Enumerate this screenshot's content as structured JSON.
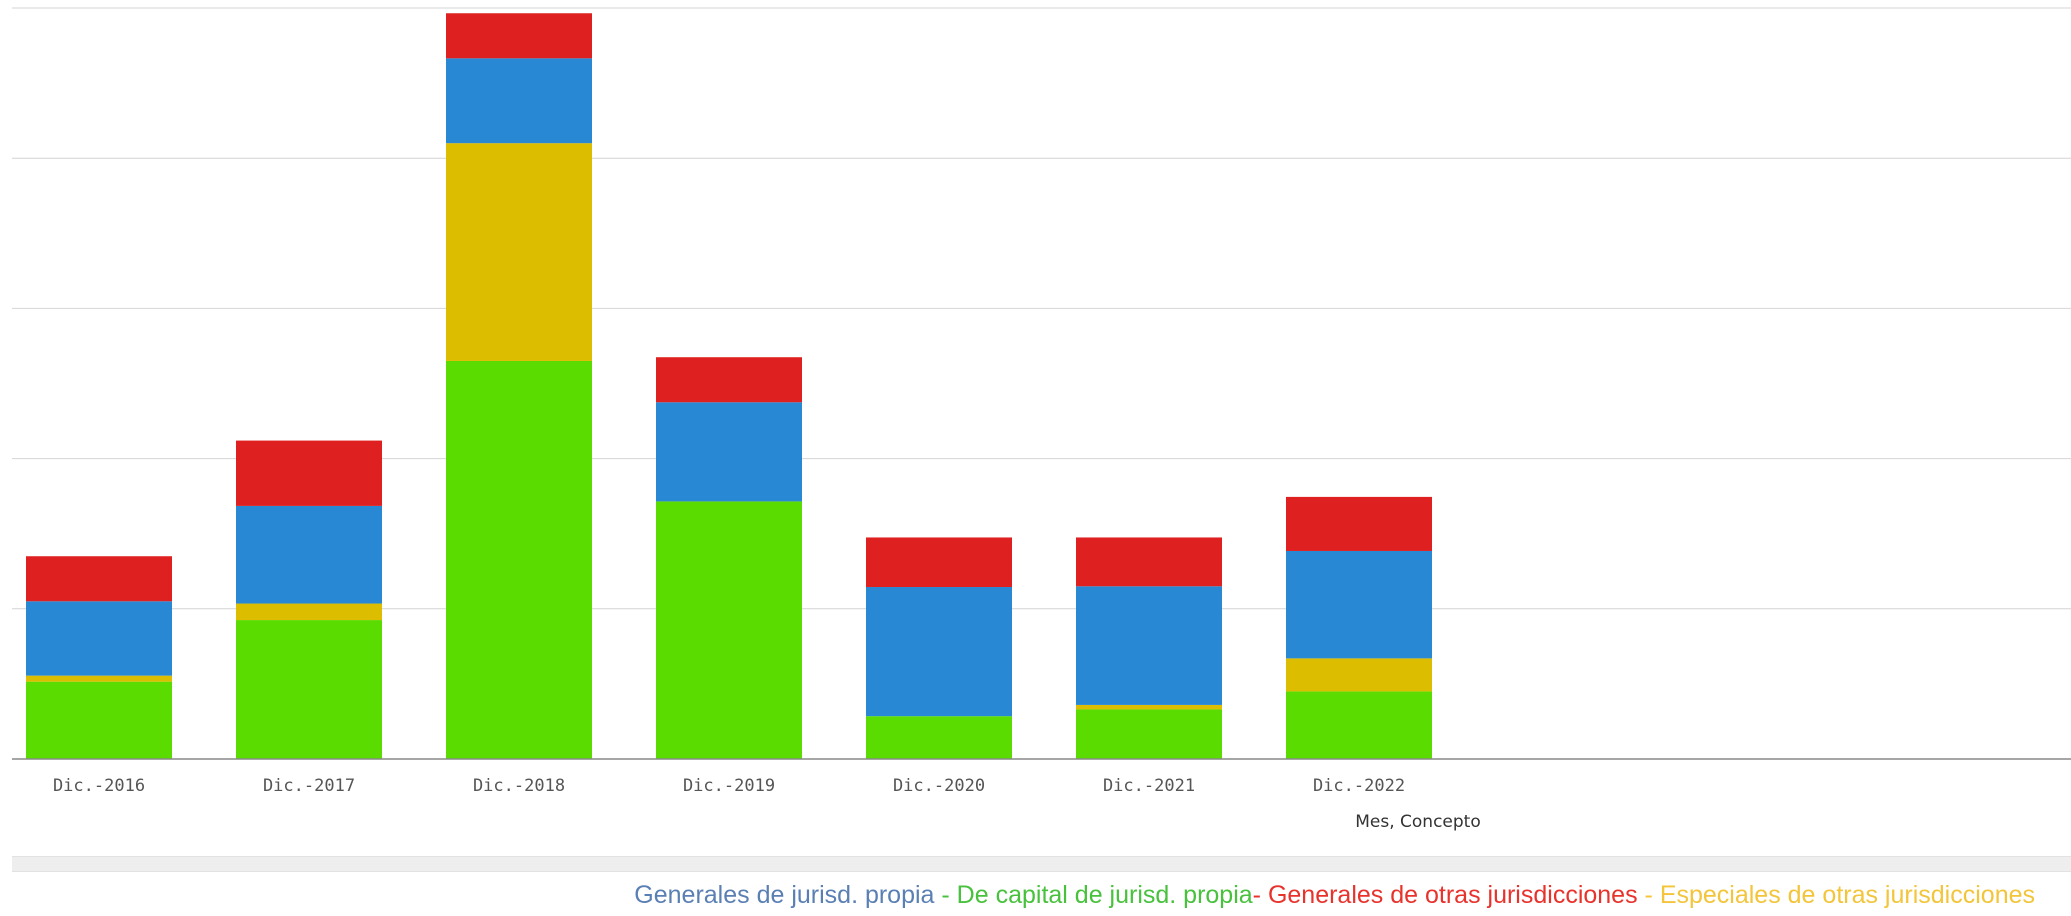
{
  "chart_data": {
    "type": "bar",
    "stacked": true,
    "categories": [
      "Dic.-2016",
      "Dic.-2017",
      "Dic.-2018",
      "Dic.-2019",
      "Dic.-2020",
      "Dic.-2021",
      "Dic.-2022"
    ],
    "xlabel": "Mes, Concepto",
    "ylabel": "",
    "ylim": [
      0,
      100
    ],
    "yticks": [
      0,
      20,
      40,
      60,
      80,
      100
    ],
    "y_tick_labels_visible": false,
    "grid": true,
    "legend_position": "bottom-right",
    "series": [
      {
        "name": "De capital de jurisd. propia",
        "color": "#5bdc00",
        "values": [
          10.3,
          18.5,
          53.0,
          34.3,
          5.7,
          6.6,
          9.0
        ]
      },
      {
        "name": "Especiales de otras jurisdicciones",
        "color": "#ddbd00",
        "values": [
          0.8,
          2.2,
          29.0,
          0.0,
          0.0,
          0.6,
          4.4
        ]
      },
      {
        "name": "Generales de jurisd. propia",
        "color": "#2988d4",
        "values": [
          9.9,
          13.0,
          11.3,
          13.2,
          17.2,
          15.8,
          14.3
        ]
      },
      {
        "name": "Generales de otras jurisdicciones",
        "color": "#de2020",
        "values": [
          6.0,
          8.7,
          6.0,
          6.0,
          6.6,
          6.5,
          7.2
        ]
      }
    ]
  },
  "legend": {
    "items": [
      {
        "label": "Generales de jurisd. propia",
        "color": "#5a7fb3"
      },
      {
        "label": "De capital de jurisd. propia",
        "color": "#48c13c"
      },
      {
        "label": "Generales de otras jurisdicciones",
        "color": "#e8322c"
      },
      {
        "label": "Especiales de otras jurisdicciones",
        "color": "#f2c53a"
      }
    ],
    "separators": [
      " - ",
      "- ",
      " - "
    ]
  }
}
